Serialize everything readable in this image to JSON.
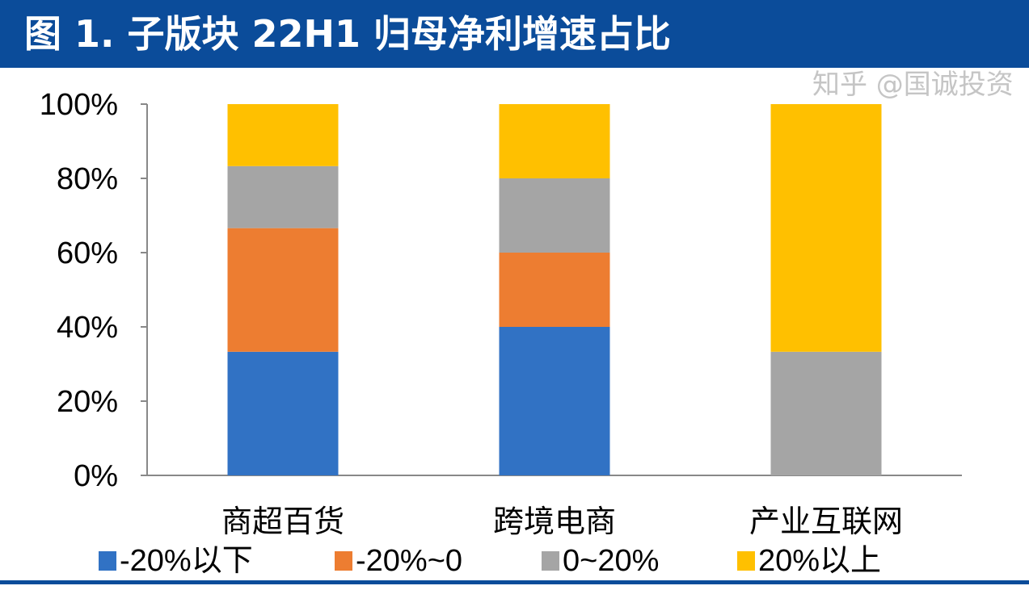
{
  "title": "图 1. 子版块 22H1 归母净利增速占比",
  "watermark": "知乎 @国诚投资",
  "chart_data": {
    "type": "bar",
    "stacked": true,
    "title": "图 1. 子版块 22H1 归母净利增速占比",
    "categories": [
      "商超百货",
      "跨境电商",
      "产业互联网"
    ],
    "series": [
      {
        "name": "-20%以下",
        "color": "#3172c4",
        "values": [
          33.3,
          40,
          0
        ]
      },
      {
        "name": "-20%~0",
        "color": "#ed7d31",
        "values": [
          33.3,
          20,
          0
        ]
      },
      {
        "name": "0~20%",
        "color": "#a5a5a5",
        "values": [
          16.7,
          20,
          33.3
        ]
      },
      {
        "name": "20%以上",
        "color": "#ffc000",
        "values": [
          16.7,
          20,
          66.7
        ]
      }
    ],
    "ylim": [
      0,
      100
    ],
    "yticks": [
      "0%",
      "20%",
      "40%",
      "60%",
      "80%",
      "100%"
    ],
    "xlabel": "",
    "ylabel": "",
    "grid": false,
    "legend": "bottom"
  }
}
